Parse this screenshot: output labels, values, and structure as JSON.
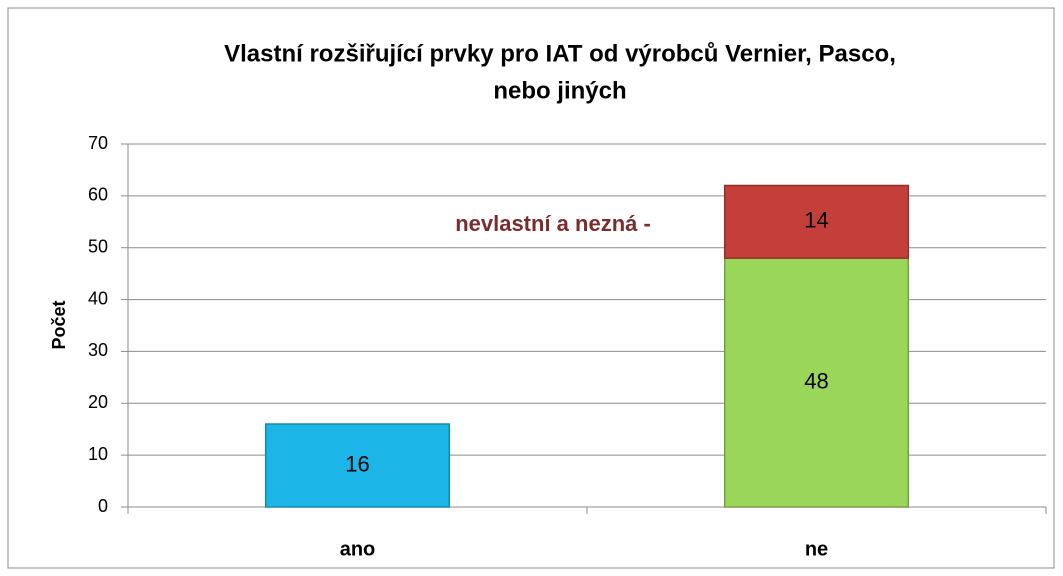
{
  "chart_data": {
    "type": "stacked_bar",
    "title": [
      "Vlastní rozšiřující prvky pro IAT od výrobců Vernier, Pasco,",
      "nebo jiných"
    ],
    "y_label": "Počet",
    "annotation": "nevlastní a nezná -",
    "categories": [
      "ano",
      "ne"
    ],
    "series": [
      {
        "color": "#1cb5e8",
        "values": [
          16,
          null
        ]
      },
      {
        "color": "#9ad65a",
        "values": [
          null,
          48
        ]
      },
      {
        "color": "#c43f3a",
        "values": [
          null,
          14
        ]
      }
    ],
    "ylim": [
      0,
      70
    ],
    "yticks": [
      0,
      10,
      20,
      30,
      40,
      50,
      60,
      70
    ],
    "grid": true
  }
}
